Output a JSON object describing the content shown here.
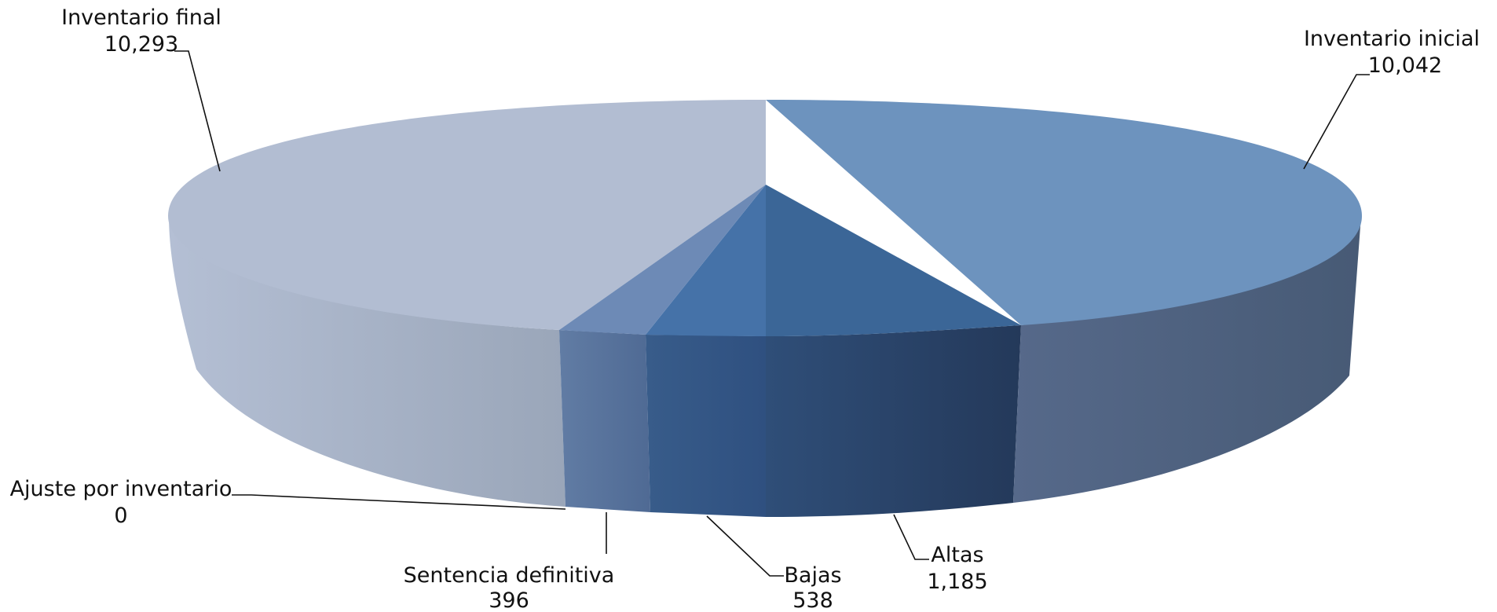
{
  "chart_data": {
    "type": "pie",
    "style": "3d",
    "title": "",
    "labels": [
      "Inventario inicial",
      "Altas",
      "Bajas",
      "Sentencia definitiva",
      "Ajuste por inventario",
      "Inventario final"
    ],
    "values": [
      10042,
      1185,
      538,
      396,
      0,
      10293
    ],
    "value_labels": [
      "10,042",
      "1,185",
      "538",
      "396",
      "0",
      "10,293"
    ],
    "colors": [
      "#6d93be",
      "#3b6697",
      "#4572a8",
      "#6d8ab6",
      "#6d8ab6",
      "#b2bdd2"
    ],
    "legend": "none",
    "data_labels": "outside with leader lines"
  }
}
